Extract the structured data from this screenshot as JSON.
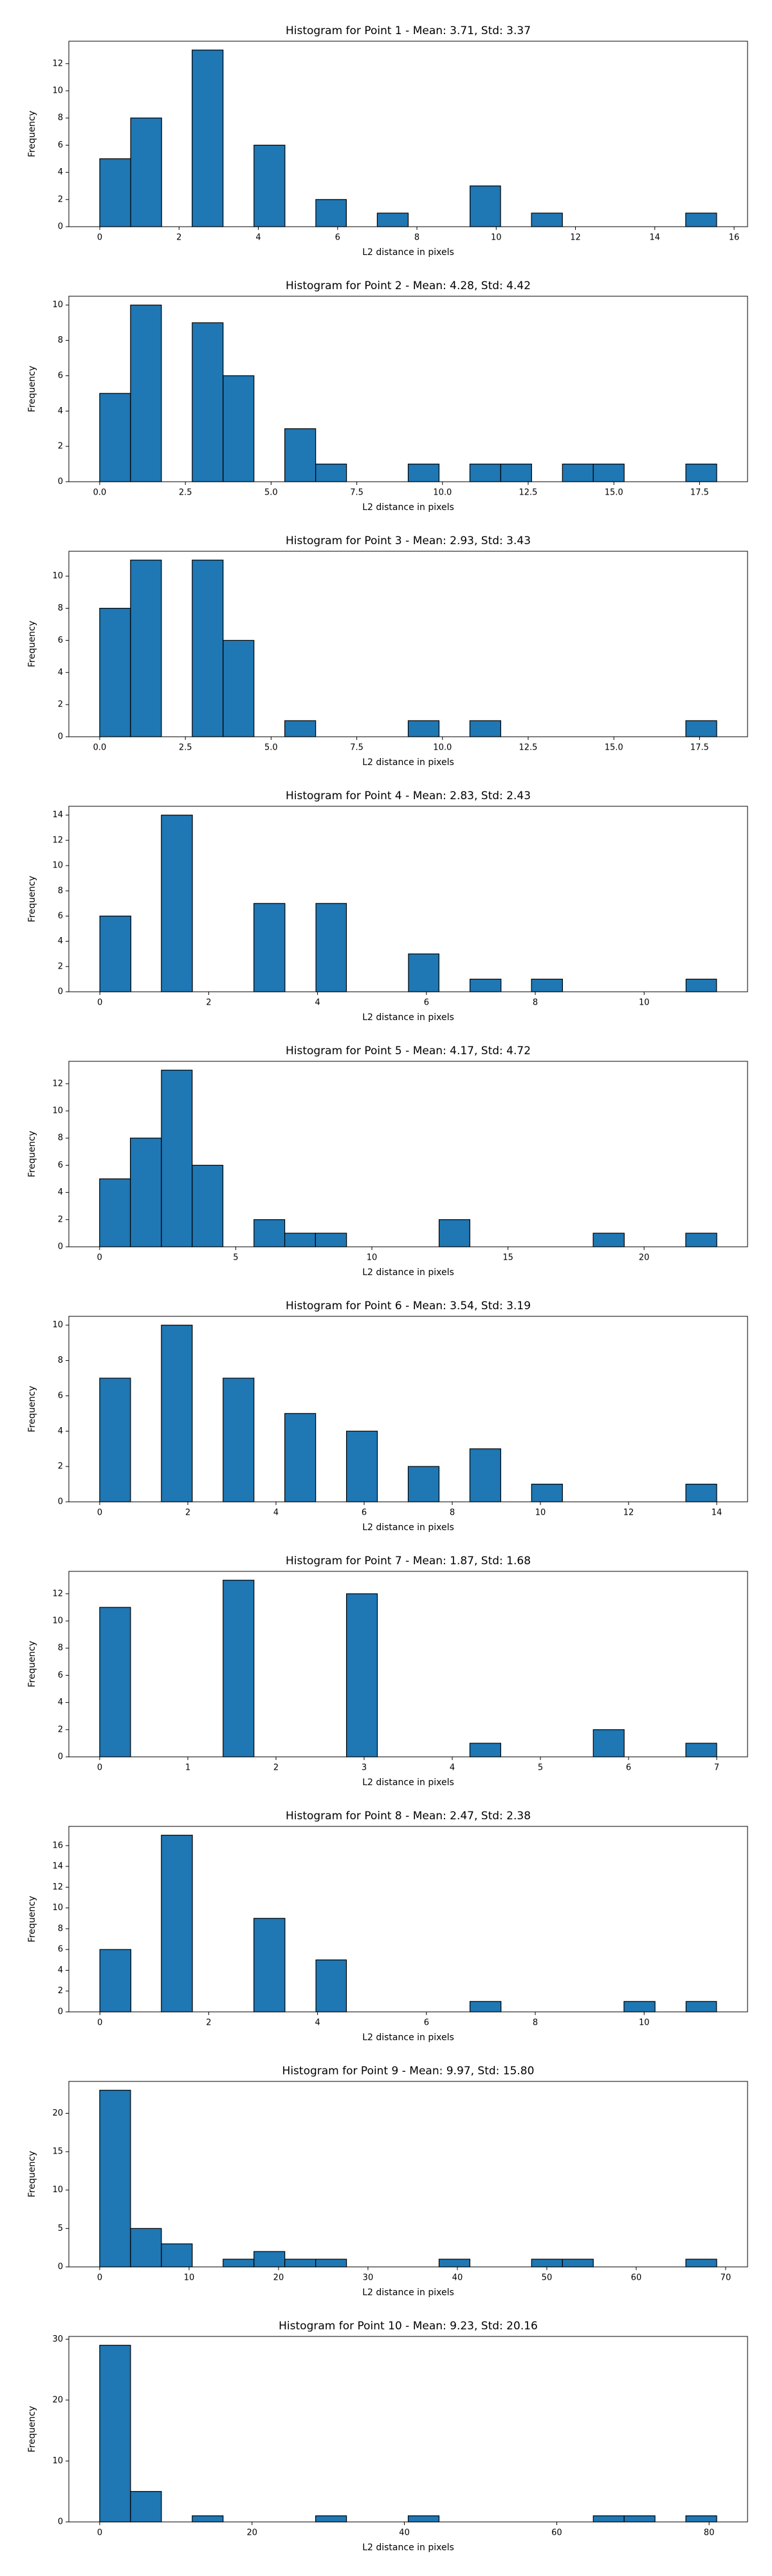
{
  "chart_data": [
    {
      "type": "histogram",
      "title": "Histogram for Point 1 - Mean: 3.71, Std: 3.37",
      "x_label": "L2 distance in pixels",
      "y_label": "Frequency",
      "color": "#1f77b4",
      "edge_color": "#000000",
      "bins": [
        0,
        0.78,
        1.56,
        2.33,
        3.11,
        3.89,
        4.67,
        5.45,
        6.22,
        7.0,
        7.78,
        8.56,
        9.34,
        10.11,
        10.89,
        11.67,
        12.45,
        13.23,
        14.0,
        14.78,
        15.56
      ],
      "values": [
        5,
        8,
        0,
        13,
        0,
        6,
        0,
        2,
        0,
        1,
        0,
        0,
        3,
        0,
        1,
        0,
        0,
        0,
        0,
        1
      ],
      "xlim": [
        -0.78,
        16.34
      ],
      "xticks": [
        0,
        2,
        4,
        6,
        8,
        10,
        12,
        14,
        16
      ],
      "ylim": [
        0,
        13.65
      ],
      "yticks": [
        0,
        2,
        4,
        6,
        8,
        10,
        12
      ]
    },
    {
      "type": "histogram",
      "title": "Histogram for Point 2 - Mean: 4.28, Std: 4.42",
      "x_label": "L2 distance in pixels",
      "y_label": "Frequency",
      "color": "#1f77b4",
      "edge_color": "#000000",
      "bins": [
        0,
        0.9,
        1.8,
        2.7,
        3.6,
        4.5,
        5.4,
        6.3,
        7.2,
        8.1,
        9.0,
        9.9,
        10.8,
        11.7,
        12.6,
        13.5,
        14.4,
        15.3,
        16.2,
        17.1,
        18.0
      ],
      "values": [
        5,
        10,
        0,
        9,
        6,
        0,
        3,
        1,
        0,
        0,
        1,
        0,
        1,
        1,
        0,
        1,
        1,
        0,
        0,
        1
      ],
      "xlim": [
        -0.9,
        18.9
      ],
      "xticks": [
        {
          "value": 0,
          "label": "0.0"
        },
        2.5,
        {
          "value": 5,
          "label": "5.0"
        },
        7.5,
        {
          "value": 10,
          "label": "10.0"
        },
        12.5,
        {
          "value": 15,
          "label": "15.0"
        },
        17.5
      ],
      "ylim": [
        0,
        10.5
      ],
      "yticks": [
        0,
        2,
        4,
        6,
        8,
        10
      ]
    },
    {
      "type": "histogram",
      "title": "Histogram for Point 3 - Mean: 2.93, Std: 3.43",
      "x_label": "L2 distance in pixels",
      "y_label": "Frequency",
      "color": "#1f77b4",
      "edge_color": "#000000",
      "bins": [
        0,
        0.9,
        1.8,
        2.7,
        3.6,
        4.5,
        5.4,
        6.3,
        7.2,
        8.1,
        9.0,
        9.9,
        10.8,
        11.7,
        12.6,
        13.5,
        14.4,
        15.3,
        16.2,
        17.1,
        18.0
      ],
      "values": [
        8,
        11,
        0,
        11,
        6,
        0,
        1,
        0,
        0,
        0,
        1,
        0,
        1,
        0,
        0,
        0,
        0,
        0,
        0,
        1
      ],
      "xlim": [
        -0.9,
        18.9
      ],
      "xticks": [
        {
          "value": 0,
          "label": "0.0"
        },
        2.5,
        {
          "value": 5,
          "label": "5.0"
        },
        7.5,
        {
          "value": 10,
          "label": "10.0"
        },
        12.5,
        {
          "value": 15,
          "label": "15.0"
        },
        17.5
      ],
      "ylim": [
        0,
        11.55
      ],
      "yticks": [
        0,
        2,
        4,
        6,
        8,
        10
      ]
    },
    {
      "type": "histogram",
      "title": "Histogram for Point 4 - Mean: 2.83, Std: 2.43",
      "x_label": "L2 distance in pixels",
      "y_label": "Frequency",
      "color": "#1f77b4",
      "edge_color": "#000000",
      "bins": [
        0,
        0.57,
        1.13,
        1.7,
        2.27,
        2.83,
        3.4,
        3.97,
        4.53,
        5.1,
        5.67,
        6.23,
        6.8,
        7.37,
        7.93,
        8.5,
        9.07,
        9.63,
        10.2,
        10.77,
        11.33
      ],
      "values": [
        6,
        0,
        14,
        0,
        0,
        7,
        0,
        7,
        0,
        0,
        3,
        0,
        1,
        0,
        1,
        0,
        0,
        0,
        0,
        1
      ],
      "xlim": [
        -0.57,
        11.9
      ],
      "xticks": [
        0,
        2,
        4,
        6,
        8,
        10
      ],
      "ylim": [
        0,
        14.7
      ],
      "yticks": [
        0,
        2,
        4,
        6,
        8,
        10,
        12,
        14
      ]
    },
    {
      "type": "histogram",
      "title": "Histogram for Point 5 - Mean: 4.17, Std: 4.72",
      "x_label": "L2 distance in pixels",
      "y_label": "Frequency",
      "color": "#1f77b4",
      "edge_color": "#000000",
      "bins": [
        0,
        1.13,
        2.27,
        3.4,
        4.53,
        5.67,
        6.8,
        7.93,
        9.07,
        10.2,
        11.33,
        12.47,
        13.6,
        14.73,
        15.87,
        17.0,
        18.13,
        19.27,
        20.4,
        21.53,
        22.67
      ],
      "values": [
        5,
        8,
        13,
        6,
        0,
        2,
        1,
        1,
        0,
        0,
        0,
        2,
        0,
        0,
        0,
        0,
        1,
        0,
        0,
        1
      ],
      "xlim": [
        -1.13,
        23.8
      ],
      "xticks": [
        0,
        5,
        10,
        15,
        20
      ],
      "ylim": [
        0,
        13.65
      ],
      "yticks": [
        0,
        2,
        4,
        6,
        8,
        10,
        12
      ]
    },
    {
      "type": "histogram",
      "title": "Histogram for Point 6 - Mean: 3.54, Std: 3.19",
      "x_label": "L2 distance in pixels",
      "y_label": "Frequency",
      "color": "#1f77b4",
      "edge_color": "#000000",
      "bins": [
        0,
        0.7,
        1.4,
        2.1,
        2.8,
        3.5,
        4.2,
        4.9,
        5.6,
        6.3,
        7.0,
        7.7,
        8.4,
        9.1,
        9.8,
        10.5,
        11.2,
        11.9,
        12.6,
        13.3,
        14.0
      ],
      "values": [
        7,
        0,
        10,
        0,
        7,
        0,
        5,
        0,
        4,
        0,
        2,
        0,
        3,
        0,
        1,
        0,
        0,
        0,
        0,
        1
      ],
      "xlim": [
        -0.7,
        14.7
      ],
      "xticks": [
        0,
        2,
        4,
        6,
        8,
        10,
        12,
        14
      ],
      "ylim": [
        0,
        10.5
      ],
      "yticks": [
        0,
        2,
        4,
        6,
        8,
        10
      ]
    },
    {
      "type": "histogram",
      "title": "Histogram for Point 7 - Mean: 1.87, Std: 1.68",
      "x_label": "L2 distance in pixels",
      "y_label": "Frequency",
      "color": "#1f77b4",
      "edge_color": "#000000",
      "bins": [
        0,
        0.35,
        0.7,
        1.05,
        1.4,
        1.75,
        2.1,
        2.45,
        2.8,
        3.15,
        3.5,
        3.85,
        4.2,
        4.55,
        4.9,
        5.25,
        5.6,
        5.95,
        6.3,
        6.65,
        7.0
      ],
      "values": [
        11,
        0,
        0,
        0,
        13,
        0,
        0,
        0,
        12,
        0,
        0,
        0,
        1,
        0,
        0,
        0,
        2,
        0,
        0,
        1
      ],
      "xlim": [
        -0.35,
        7.35
      ],
      "xticks": [
        0,
        1,
        2,
        3,
        4,
        5,
        6,
        7
      ],
      "ylim": [
        0,
        13.65
      ],
      "yticks": [
        0,
        2,
        4,
        6,
        8,
        10,
        12
      ]
    },
    {
      "type": "histogram",
      "title": "Histogram for Point 8 - Mean: 2.47, Std: 2.38",
      "x_label": "L2 distance in pixels",
      "y_label": "Frequency",
      "color": "#1f77b4",
      "edge_color": "#000000",
      "bins": [
        0,
        0.57,
        1.13,
        1.7,
        2.27,
        2.83,
        3.4,
        3.97,
        4.53,
        5.1,
        5.67,
        6.23,
        6.8,
        7.37,
        7.93,
        8.5,
        9.07,
        9.63,
        10.2,
        10.77,
        11.33
      ],
      "values": [
        6,
        0,
        17,
        0,
        0,
        9,
        0,
        5,
        0,
        0,
        0,
        0,
        1,
        0,
        0,
        0,
        0,
        1,
        0,
        1
      ],
      "xlim": [
        -0.57,
        11.9
      ],
      "xticks": [
        0,
        2,
        4,
        6,
        8,
        10
      ],
      "ylim": [
        0,
        17.85
      ],
      "yticks": [
        0,
        2,
        4,
        6,
        8,
        10,
        12,
        14,
        16
      ]
    },
    {
      "type": "histogram",
      "title": "Histogram for Point 9 - Mean: 9.97, Std: 15.80",
      "x_label": "L2 distance in pixels",
      "y_label": "Frequency",
      "color": "#1f77b4",
      "edge_color": "#000000",
      "bins": [
        0,
        3.45,
        6.9,
        10.35,
        13.8,
        17.25,
        20.7,
        24.15,
        27.6,
        31.05,
        34.5,
        37.95,
        41.4,
        44.85,
        48.3,
        51.75,
        55.2,
        58.65,
        62.1,
        65.55,
        69.0
      ],
      "values": [
        23,
        5,
        3,
        0,
        1,
        2,
        1,
        1,
        0,
        0,
        0,
        1,
        0,
        0,
        1,
        1,
        0,
        0,
        0,
        1
      ],
      "xlim": [
        -3.45,
        72.45
      ],
      "xticks": [
        0,
        10,
        20,
        30,
        40,
        50,
        60,
        70
      ],
      "ylim": [
        0,
        24.15
      ],
      "yticks": [
        0,
        5,
        10,
        15,
        20
      ]
    },
    {
      "type": "histogram",
      "title": "Histogram for Point 10 - Mean: 9.23, Std: 20.16",
      "x_label": "L2 distance in pixels",
      "y_label": "Frequency",
      "color": "#1f77b4",
      "edge_color": "#000000",
      "bins": [
        0,
        4.05,
        8.1,
        12.15,
        16.2,
        20.25,
        24.3,
        28.35,
        32.4,
        36.45,
        40.5,
        44.55,
        48.6,
        52.65,
        56.7,
        60.75,
        64.8,
        68.85,
        72.9,
        76.95,
        81.0
      ],
      "values": [
        29,
        5,
        0,
        1,
        0,
        0,
        0,
        1,
        0,
        0,
        1,
        0,
        0,
        0,
        0,
        0,
        1,
        1,
        0,
        1
      ],
      "xlim": [
        -4.05,
        85.05
      ],
      "xticks": [
        0,
        20,
        40,
        60,
        80
      ],
      "ylim": [
        0,
        30.45
      ],
      "yticks": [
        0,
        10,
        20,
        30
      ]
    }
  ]
}
